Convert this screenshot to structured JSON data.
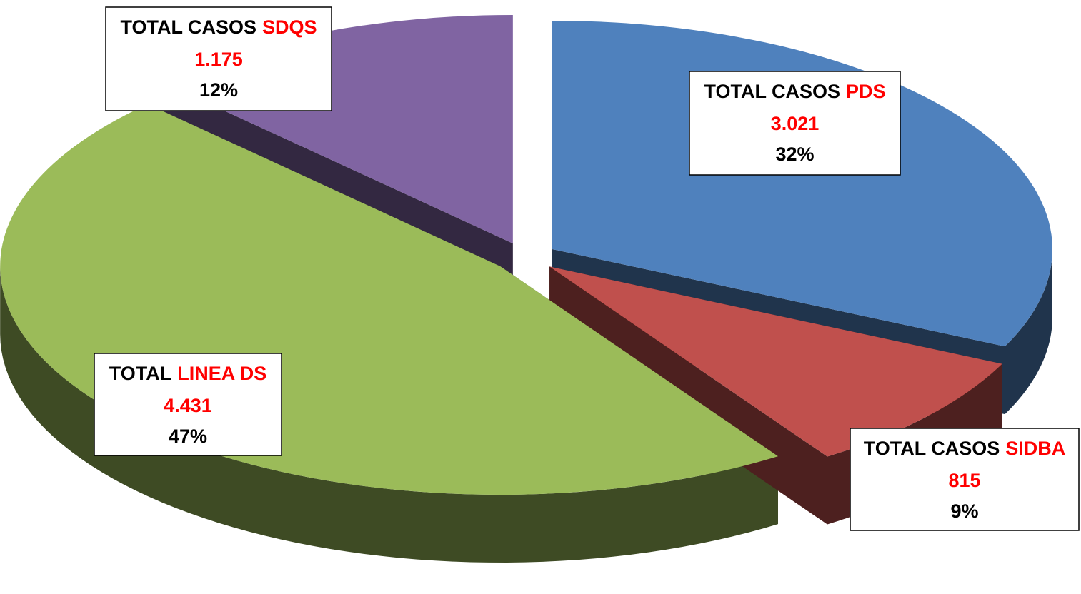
{
  "chart_data": {
    "type": "pie",
    "categories": [
      "PDS",
      "SIDBA",
      "LINEA DS",
      "SDQS"
    ],
    "label_prefixes": [
      "TOTAL CASOS",
      "TOTAL CASOS",
      "TOTAL",
      "TOTAL CASOS"
    ],
    "values": [
      3021,
      815,
      4431,
      1175
    ],
    "value_labels": [
      "3.021",
      "815",
      "4.431",
      "1.175"
    ],
    "percent_labels": [
      "32%",
      "9%",
      "47%",
      "12%"
    ],
    "colors": [
      "#4f81bd",
      "#c0504d",
      "#9bbb59",
      "#8064a2"
    ]
  }
}
